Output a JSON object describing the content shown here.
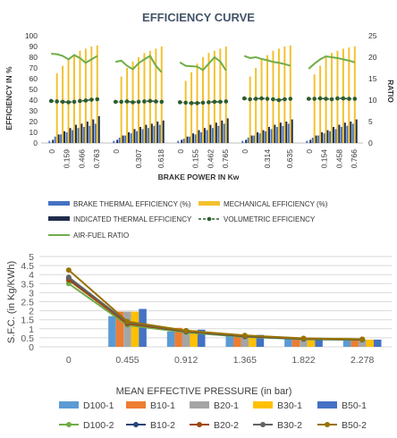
{
  "chart_data": [
    {
      "type": "bar",
      "title": "EFFICIENCY CURVE",
      "xlabel": "BRAKE POWER IN Kw",
      "ylabel": "EFFICIENCY IN %",
      "y2label": "RATIO",
      "ylim": [
        0,
        100
      ],
      "y2lim": [
        0,
        25
      ],
      "yticks": [
        "0",
        "10",
        "20",
        "30",
        "40",
        "50",
        "60",
        "70",
        "80",
        "90",
        "100"
      ],
      "y2ticks": [
        "0",
        "5",
        "10",
        "15",
        "20",
        "25"
      ],
      "x_tick_labels": [
        "0",
        "0.159",
        "0.466",
        "0.763",
        "0",
        "0.307",
        "0.618",
        "0",
        "0.155",
        "0.462",
        "0.765",
        "0",
        "0.314",
        "0.635",
        "0",
        "0.154",
        "0.458",
        "0.766"
      ],
      "legend": {
        "placement": "bottom",
        "entries": [
          {
            "name": "BRAKE THERMAL EFFICIENCY (%)",
            "color": "#4472c4",
            "kind": "bar"
          },
          {
            "name": "MECHANICAL EFFICIENCY (%)",
            "color": "#f2c12e",
            "kind": "bar"
          },
          {
            "name": "INDICATED THERMAL EFFICIENCY",
            "color": "#1f2d4a",
            "kind": "bar"
          },
          {
            "name": "VOLUMETRIC EFFICIENCY",
            "color": "#2e5d2e",
            "kind": "dotline"
          },
          {
            "name": "AIR-FUEL RATIO",
            "color": "#70ad47",
            "kind": "line"
          }
        ]
      },
      "groups": [
        {
          "bte": [
            2,
            6,
            8,
            10,
            12,
            14,
            15,
            16,
            18
          ],
          "ite": [
            3,
            8,
            11,
            14,
            17,
            18,
            20,
            22,
            25
          ],
          "mech": [
            0,
            65,
            72,
            78,
            82,
            86,
            88,
            90,
            91
          ],
          "vol_ratio": [
            9.8,
            9.7,
            9.6,
            9.5,
            9.6,
            9.8,
            9.9,
            10.1,
            10.2
          ],
          "af_ratio": [
            20.8,
            20.7,
            20.3,
            19.5,
            20.5,
            19.8,
            18.7,
            19.5,
            20.3
          ]
        },
        {
          "bte": [
            2,
            5,
            7,
            9,
            11,
            13,
            14,
            16,
            17
          ],
          "ite": [
            3,
            7,
            10,
            13,
            15,
            17,
            18,
            20,
            21
          ],
          "mech": [
            0,
            62,
            70,
            76,
            80,
            84,
            86,
            88,
            90
          ],
          "vol_ratio": [
            9.6,
            9.6,
            9.7,
            9.5,
            9.6,
            9.7,
            9.8,
            9.7,
            9.6
          ],
          "af_ratio": [
            18.9,
            19.2,
            18.0,
            17.2,
            18.6,
            19.5,
            20.3,
            18.0,
            16.5
          ]
        },
        {
          "bte": [
            2,
            4,
            6,
            8,
            10,
            12,
            14,
            16,
            18
          ],
          "ite": [
            3,
            6,
            9,
            12,
            14,
            17,
            19,
            21,
            23
          ],
          "mech": [
            0,
            58,
            66,
            74,
            80,
            84,
            86,
            88,
            90
          ],
          "vol_ratio": [
            9.5,
            9.4,
            9.3,
            9.3,
            9.4,
            9.5,
            9.6,
            9.6,
            9.7
          ],
          "af_ratio": [
            18.8,
            18.0,
            17.9,
            17.8,
            17.0,
            18.5,
            20.0,
            19.0,
            16.9
          ]
        },
        {
          "bte": [
            2,
            5,
            7,
            9,
            11,
            13,
            15,
            16,
            18
          ],
          "ite": [
            3,
            7,
            10,
            12,
            15,
            17,
            19,
            20,
            22
          ],
          "mech": [
            0,
            62,
            70,
            78,
            82,
            86,
            88,
            90,
            91
          ],
          "vol_ratio": [
            10.4,
            10.2,
            10.3,
            10.4,
            10.3,
            10.2,
            10.0,
            10.2,
            10.3
          ],
          "af_ratio": [
            20.3,
            19.8,
            20.0,
            19.6,
            19.3,
            18.9,
            18.7,
            18.4,
            18.0
          ]
        },
        {
          "bte": [
            2,
            5,
            7,
            9,
            11,
            13,
            15,
            16,
            18
          ],
          "ite": [
            3,
            7,
            10,
            12,
            15,
            17,
            19,
            20,
            22
          ],
          "mech": [
            0,
            64,
            72,
            80,
            84,
            86,
            88,
            89,
            90
          ],
          "vol_ratio": [
            10.3,
            10.3,
            10.4,
            10.3,
            10.2,
            10.4,
            10.4,
            10.3,
            10.3
          ],
          "af_ratio": [
            17.3,
            18.5,
            19.5,
            20.2,
            20.0,
            19.8,
            19.5,
            19.2,
            18.8
          ]
        }
      ]
    },
    {
      "type": "bar",
      "title": "",
      "xlabel": "MEAN EFFECTIVE PRESSURE (in bar)",
      "ylabel": "S.F.C. (in Kg/KWh)",
      "ylim": [
        0,
        5
      ],
      "yticks": [
        "0",
        "0.5",
        "1",
        "1.5",
        "2",
        "2.5",
        "3",
        "3.5",
        "4",
        "4.5",
        "5"
      ],
      "categories": [
        "0",
        "0.455",
        "0.912",
        "1.365",
        "1.822",
        "2.278"
      ],
      "grid": true,
      "legend": {
        "placement": "bottom"
      },
      "bar_series": [
        {
          "name": "D100-1",
          "color": "#5b9bd5",
          "values": [
            0,
            1.7,
            0.85,
            0.6,
            0.45,
            0.4
          ]
        },
        {
          "name": "B10-1",
          "color": "#ed7d31",
          "values": [
            0,
            1.95,
            1.05,
            0.62,
            0.45,
            0.4
          ]
        },
        {
          "name": "B20-1",
          "color": "#a5a5a5",
          "values": [
            0,
            1.95,
            0.95,
            0.65,
            0.48,
            0.4
          ]
        },
        {
          "name": "B30-1",
          "color": "#ffc000",
          "values": [
            0,
            1.95,
            0.92,
            0.62,
            0.45,
            0.4
          ]
        },
        {
          "name": "B50-1",
          "color": "#4472c4",
          "values": [
            0,
            2.1,
            0.95,
            0.66,
            0.48,
            0.4
          ]
        }
      ],
      "line_series": [
        {
          "name": "D100-2",
          "color": "#70ad47",
          "values": [
            3.5,
            1.2,
            0.8,
            0.55,
            0.42,
            0.38
          ]
        },
        {
          "name": "B10-2",
          "color": "#264478",
          "values": [
            3.8,
            1.3,
            0.85,
            0.58,
            0.44,
            0.4
          ]
        },
        {
          "name": "B20-2",
          "color": "#9e480e",
          "values": [
            3.7,
            1.28,
            0.86,
            0.6,
            0.45,
            0.41
          ]
        },
        {
          "name": "B30-2",
          "color": "#636363",
          "values": [
            3.85,
            1.35,
            0.88,
            0.62,
            0.46,
            0.42
          ]
        },
        {
          "name": "B50-2",
          "color": "#997300",
          "values": [
            4.25,
            1.4,
            0.9,
            0.63,
            0.47,
            0.42
          ]
        }
      ]
    }
  ]
}
